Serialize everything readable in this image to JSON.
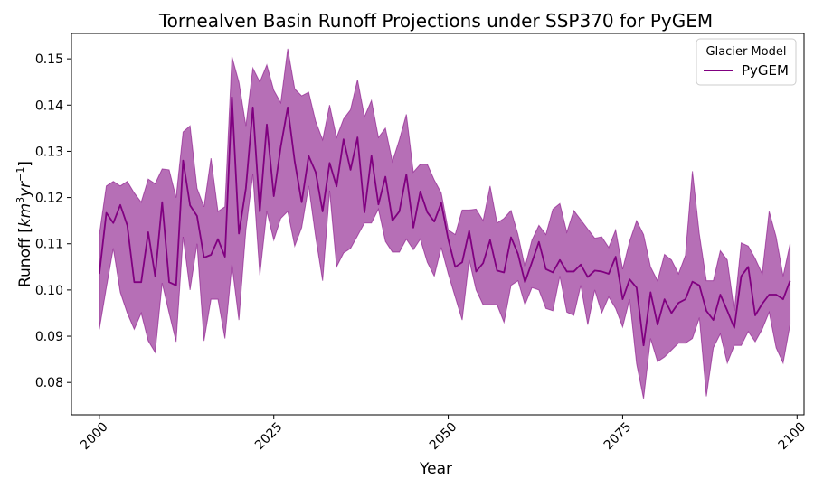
{
  "chart_data": {
    "type": "line",
    "title": "Tornealven Basin Runoff Projections under SSP370 for PyGEM",
    "xlabel": "Year",
    "ylabel": "Runoff [km³yr⁻¹]",
    "ylabel_parts": {
      "base": "Runoff [",
      "unit": "km",
      "unit_sup": "3",
      "unit2": "yr",
      "unit2_sup": "−1",
      "close": "]"
    },
    "xlim": [
      1996,
      2101
    ],
    "ylim": [
      0.073,
      0.1555
    ],
    "xticks": [
      2000,
      2025,
      2050,
      2075,
      2100
    ],
    "xtick_labels": [
      "2000",
      "2025",
      "2050",
      "2075",
      "2100"
    ],
    "yticks": [
      0.08,
      0.09,
      0.1,
      0.11,
      0.12,
      0.13,
      0.14,
      0.15
    ],
    "ytick_labels": [
      "0.08",
      "0.09",
      "0.10",
      "0.11",
      "0.12",
      "0.13",
      "0.14",
      "0.15"
    ],
    "grid": false,
    "legend": {
      "title": "Glacier Model",
      "placement": "top-right",
      "entries": [
        "PyGEM"
      ]
    },
    "series": [
      {
        "name": "PyGEM",
        "color": "#800080",
        "band_color": "#b66fb6",
        "x": [
          2000,
          2001,
          2002,
          2003,
          2004,
          2005,
          2006,
          2007,
          2008,
          2009,
          2010,
          2011,
          2012,
          2013,
          2014,
          2015,
          2016,
          2017,
          2018,
          2019,
          2020,
          2021,
          2022,
          2023,
          2024,
          2025,
          2026,
          2027,
          2028,
          2029,
          2030,
          2031,
          2032,
          2033,
          2034,
          2035,
          2036,
          2037,
          2038,
          2039,
          2040,
          2041,
          2042,
          2043,
          2044,
          2045,
          2046,
          2047,
          2048,
          2049,
          2050,
          2051,
          2052,
          2053,
          2054,
          2055,
          2056,
          2057,
          2058,
          2059,
          2060,
          2061,
          2062,
          2063,
          2064,
          2065,
          2066,
          2067,
          2068,
          2069,
          2070,
          2071,
          2072,
          2073,
          2074,
          2075,
          2076,
          2077,
          2078,
          2079,
          2080,
          2081,
          2082,
          2083,
          2084,
          2085,
          2086,
          2087,
          2088,
          2089,
          2090,
          2091,
          2092,
          2093,
          2094,
          2095,
          2096,
          2097,
          2098,
          2099
        ],
        "mean": [
          0.1035,
          0.1167,
          0.1145,
          0.1184,
          0.114,
          0.1017,
          0.1017,
          0.1125,
          0.103,
          0.119,
          0.1017,
          0.101,
          0.128,
          0.1183,
          0.116,
          0.107,
          0.1076,
          0.111,
          0.1072,
          0.1417,
          0.1122,
          0.122,
          0.1395,
          0.117,
          0.1358,
          0.1203,
          0.131,
          0.1395,
          0.1278,
          0.119,
          0.129,
          0.1255,
          0.117,
          0.1275,
          0.1224,
          0.1326,
          0.126,
          0.133,
          0.1168,
          0.129,
          0.1185,
          0.1245,
          0.115,
          0.117,
          0.125,
          0.1135,
          0.1213,
          0.1168,
          0.1148,
          0.1188,
          0.111,
          0.105,
          0.106,
          0.1128,
          0.104,
          0.1058,
          0.1108,
          0.1042,
          0.1038,
          0.1114,
          0.1078,
          0.1017,
          0.106,
          0.1104,
          0.1045,
          0.1038,
          0.1065,
          0.104,
          0.104,
          0.1055,
          0.1028,
          0.1042,
          0.104,
          0.1035,
          0.1072,
          0.098,
          0.1023,
          0.1005,
          0.088,
          0.0995,
          0.0925,
          0.098,
          0.095,
          0.0972,
          0.098,
          0.1018,
          0.101,
          0.0955,
          0.0935,
          0.099,
          0.0955,
          0.0918,
          0.103,
          0.105,
          0.0945,
          0.097,
          0.099,
          0.099,
          0.098,
          0.102
        ],
        "upper": [
          0.112,
          0.1225,
          0.1235,
          0.1225,
          0.1235,
          0.121,
          0.119,
          0.124,
          0.123,
          0.1262,
          0.126,
          0.12,
          0.1342,
          0.1355,
          0.122,
          0.118,
          0.1285,
          0.117,
          0.118,
          0.1505,
          0.145,
          0.1355,
          0.148,
          0.145,
          0.1487,
          0.1432,
          0.1405,
          0.1522,
          0.1435,
          0.142,
          0.1428,
          0.1365,
          0.1325,
          0.14,
          0.133,
          0.137,
          0.139,
          0.1455,
          0.1375,
          0.141,
          0.133,
          0.135,
          0.1278,
          0.1325,
          0.138,
          0.1255,
          0.1272,
          0.1272,
          0.1238,
          0.121,
          0.113,
          0.112,
          0.1173,
          0.1173,
          0.1175,
          0.115,
          0.1225,
          0.1145,
          0.1155,
          0.1172,
          0.112,
          0.105,
          0.1108,
          0.114,
          0.112,
          0.1175,
          0.1187,
          0.1125,
          0.1172,
          0.1152,
          0.1132,
          0.1112,
          0.1115,
          0.1092,
          0.113,
          0.1045,
          0.1105,
          0.115,
          0.112,
          0.105,
          0.102,
          0.1077,
          0.1065,
          0.1035,
          0.1075,
          0.1257,
          0.112,
          0.102,
          0.102,
          0.1085,
          0.1065,
          0.0955,
          0.1102,
          0.1095,
          0.1068,
          0.1035,
          0.117,
          0.1115,
          0.103,
          0.11
        ],
        "lower": [
          0.0915,
          0.1005,
          0.109,
          0.0995,
          0.095,
          0.0915,
          0.095,
          0.089,
          0.0865,
          0.1015,
          0.095,
          0.0888,
          0.1115,
          0.1,
          0.11,
          0.089,
          0.098,
          0.098,
          0.0895,
          0.1055,
          0.0935,
          0.113,
          0.125,
          0.1032,
          0.117,
          0.1108,
          0.1155,
          0.117,
          0.1095,
          0.1135,
          0.1225,
          0.1115,
          0.102,
          0.1215,
          0.105,
          0.108,
          0.109,
          0.1117,
          0.1145,
          0.1145,
          0.1175,
          0.1105,
          0.1082,
          0.1082,
          0.111,
          0.1087,
          0.111,
          0.106,
          0.103,
          0.1092,
          0.1035,
          0.0985,
          0.0935,
          0.1065,
          0.1,
          0.0968,
          0.0968,
          0.0968,
          0.093,
          0.101,
          0.102,
          0.0968,
          0.1005,
          0.1,
          0.096,
          0.0955,
          0.103,
          0.0952,
          0.0945,
          0.101,
          0.0925,
          0.1,
          0.095,
          0.0985,
          0.096,
          0.092,
          0.098,
          0.084,
          0.0765,
          0.0895,
          0.0845,
          0.0855,
          0.087,
          0.0885,
          0.0885,
          0.0895,
          0.094,
          0.077,
          0.0875,
          0.0905,
          0.0842,
          0.088,
          0.088,
          0.091,
          0.0888,
          0.0915,
          0.0952,
          0.0875,
          0.0842,
          0.0925
        ]
      }
    ]
  }
}
